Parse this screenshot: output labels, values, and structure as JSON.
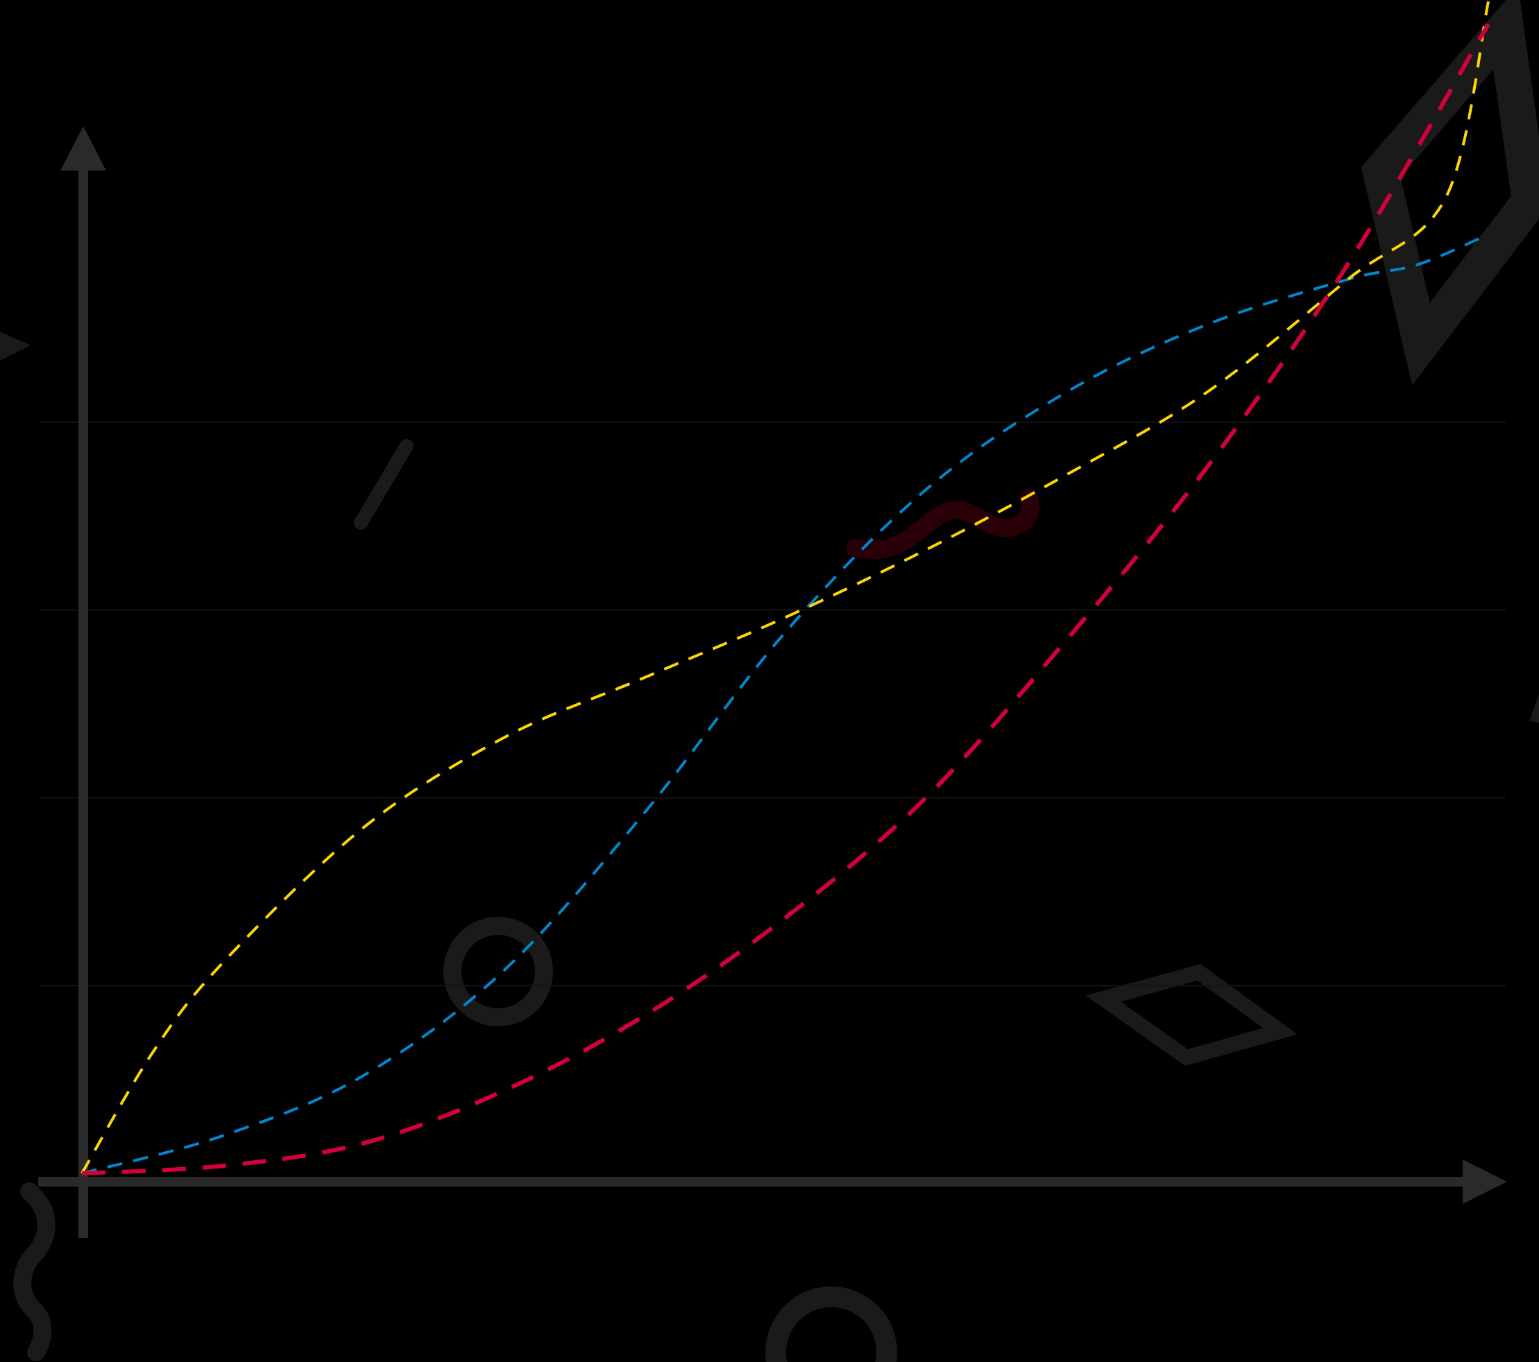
{
  "chart_data": {
    "type": "line",
    "title": "",
    "xlabel": "",
    "ylabel": "",
    "xlim": [
      0,
      1
    ],
    "ylim": [
      0,
      1.25
    ],
    "grid": true,
    "y_gridlines": [
      0.25,
      0.5,
      0.75,
      1.0
    ],
    "line_style": "dashed",
    "series": [
      {
        "color": "#0088CC",
        "x": [
          0,
          0.1,
          0.2,
          0.3,
          0.4,
          0.5,
          0.6,
          0.7,
          0.8,
          0.9,
          0.95,
          1.0
        ],
        "y": [
          0.0,
          0.05,
          0.13,
          0.27,
          0.48,
          0.72,
          0.91,
          1.04,
          1.13,
          1.19,
          1.21,
          1.25
        ]
      },
      {
        "color": "#FFD700",
        "x": [
          0,
          0.05,
          0.1,
          0.2,
          0.3,
          0.4,
          0.5,
          0.6,
          0.7,
          0.8,
          0.9,
          0.97,
          1.0
        ],
        "y": [
          0.0,
          0.16,
          0.28,
          0.46,
          0.58,
          0.66,
          0.74,
          0.83,
          0.93,
          1.04,
          1.19,
          1.3,
          1.56
        ]
      },
      {
        "color": "#D4003A",
        "x": [
          0,
          0.1,
          0.2,
          0.3,
          0.4,
          0.5,
          0.6,
          0.7,
          0.8,
          0.9,
          1.0
        ],
        "y": [
          0.0,
          0.01,
          0.04,
          0.11,
          0.21,
          0.34,
          0.5,
          0.71,
          0.94,
          1.21,
          1.53
        ]
      }
    ]
  },
  "decorations": {
    "shapes": [
      "triangle",
      "slash",
      "squiggle",
      "ring",
      "diamond",
      "wave",
      "ring",
      "kite"
    ],
    "colors": {
      "background": "#000000",
      "axis": "#2a2a2a",
      "grid": "#141414",
      "shape": "#1a1a1a",
      "squiggle": "#2a0008"
    }
  }
}
